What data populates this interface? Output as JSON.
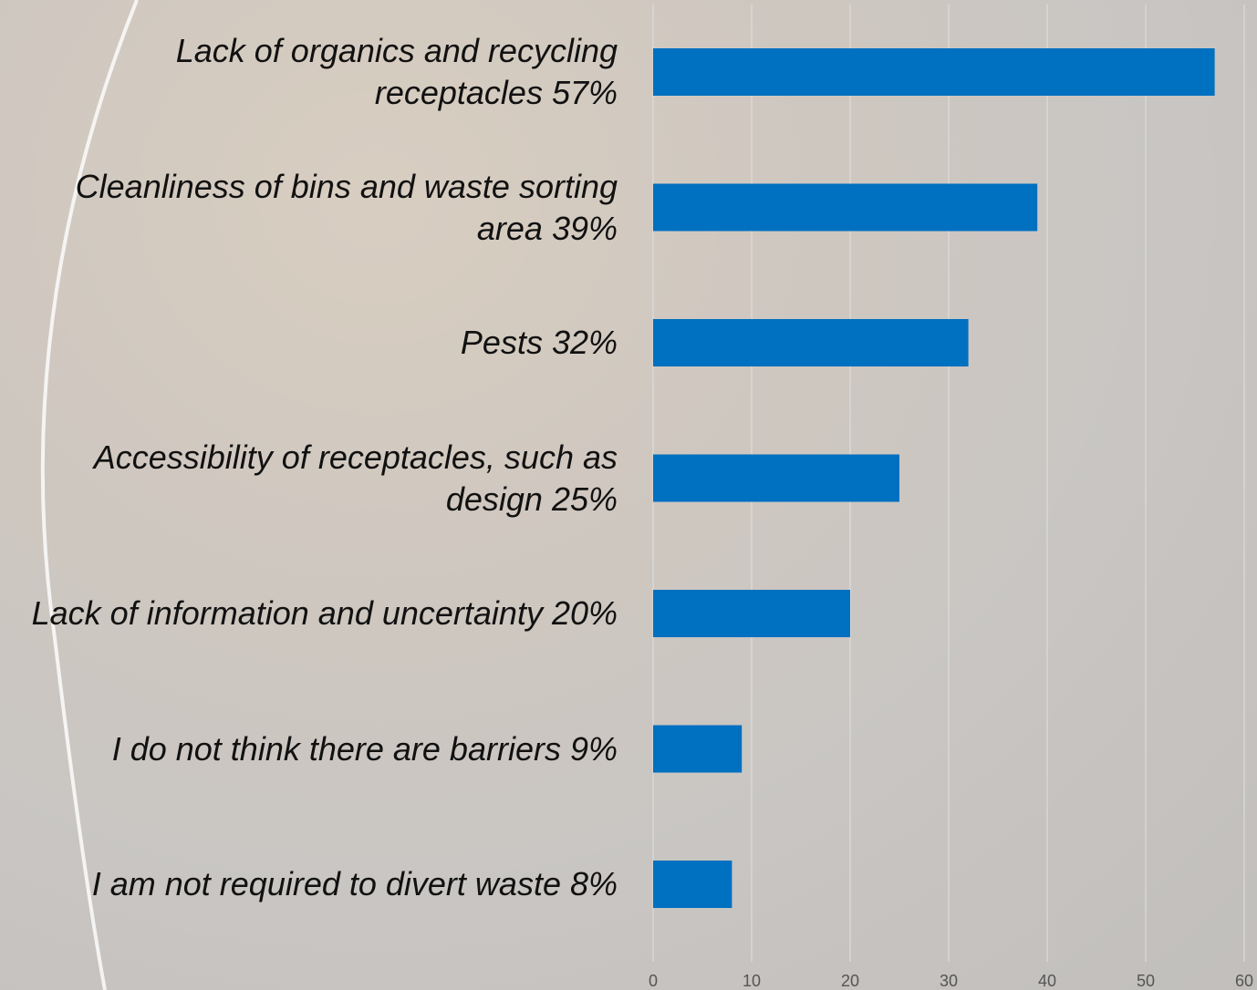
{
  "chart_data": {
    "type": "bar",
    "orientation": "horizontal",
    "categories": [
      "Lack of organics and recycling receptacles 57%",
      "Cleanliness of bins and waste sorting area 39%",
      "Pests 32%",
      "Accessibility of receptacles, such as design 25%",
      "Lack of information and uncertainty 20%",
      "I do not think there are barriers 9%",
      "I am not required to divert waste 8%"
    ],
    "values": [
      57,
      39,
      32,
      25,
      20,
      9,
      8
    ],
    "color": "#0070c0",
    "xlim": [
      0,
      60
    ],
    "xticks": [
      0,
      10,
      20,
      30,
      40,
      50,
      60
    ],
    "grid": true
  }
}
